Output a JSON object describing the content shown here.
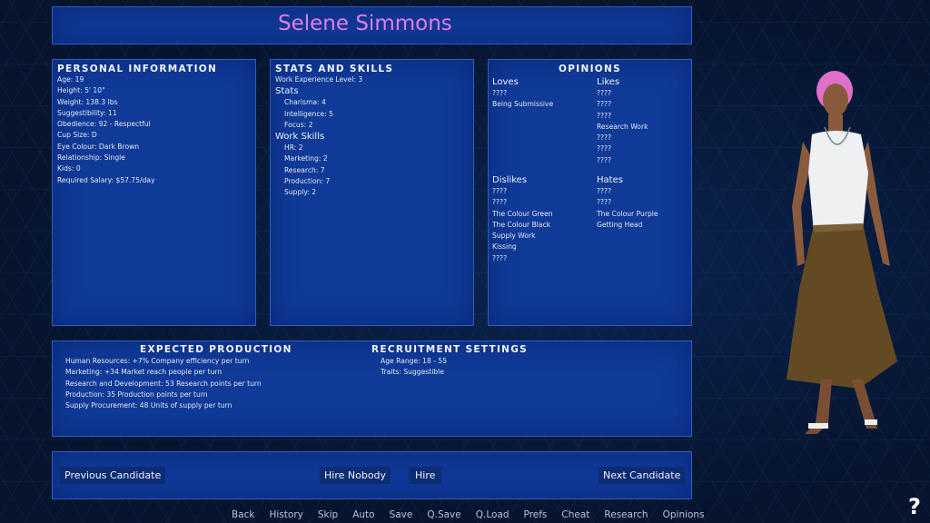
{
  "name": "Selene Simmons",
  "personal": {
    "title": "Personal Information",
    "lines": [
      "Age: 19",
      "Height: 5' 10\"",
      "Weight: 138.3 lbs",
      "Suggestibility: 11",
      "Obedience: 92 - Respectful",
      "Cup Size: D",
      "Eye Colour: Dark Brown",
      "Relationship: Single",
      "Kids: 0",
      "Required Salary: $57.75/day"
    ]
  },
  "stats": {
    "title": "Stats and Skills",
    "experience": "Work Experience Level: 3",
    "stats_label": "Stats",
    "stats": [
      "Charisma: 4",
      "Intelligence: 5",
      "Focus: 2"
    ],
    "skills_label": "Work Skills",
    "skills": [
      "HR: 2",
      "Marketing: 2",
      "Research: 7",
      "Production: 7",
      "Supply: 2"
    ]
  },
  "opinions": {
    "title": "Opinions",
    "loves": {
      "label": "Loves",
      "items": [
        "????",
        "Being Submissive"
      ]
    },
    "likes": {
      "label": "Likes",
      "items": [
        "????",
        "????",
        "????",
        "Research Work",
        "????",
        "????",
        "????"
      ]
    },
    "dislikes": {
      "label": "Dislikes",
      "items": [
        "????",
        "????",
        "The Colour Green",
        "The Colour Black",
        "Supply Work",
        "Kissing",
        "????"
      ]
    },
    "hates": {
      "label": "Hates",
      "items": [
        "????",
        "????",
        "The Colour Purple",
        "Getting Head"
      ]
    }
  },
  "production": {
    "title": "Expected Production",
    "lines": [
      "Human Resources: +7% Company efficiency per turn",
      "Marketing: +34 Market reach people per turn",
      "Research and Development: 53 Research points per turn",
      "Production: 35 Production points per turn",
      "Supply Procurement: 48 Units of supply per turn"
    ]
  },
  "recruitment": {
    "title": "Recruitment Settings",
    "lines": [
      "Age Range: 18 - 55",
      "Traits: Suggestible"
    ]
  },
  "buttons": {
    "previous": "Previous Candidate",
    "hire_nobody": "Hire Nobody",
    "hire": "Hire",
    "next": "Next Candidate"
  },
  "menu": [
    "Back",
    "History",
    "Skip",
    "Auto",
    "Save",
    "Q.Save",
    "Q.Load",
    "Prefs",
    "Cheat",
    "Research",
    "Opinions"
  ],
  "help": "?",
  "colors": {
    "name": "#e07ee8",
    "panel": "#0f3a98",
    "background": "#06142e"
  }
}
